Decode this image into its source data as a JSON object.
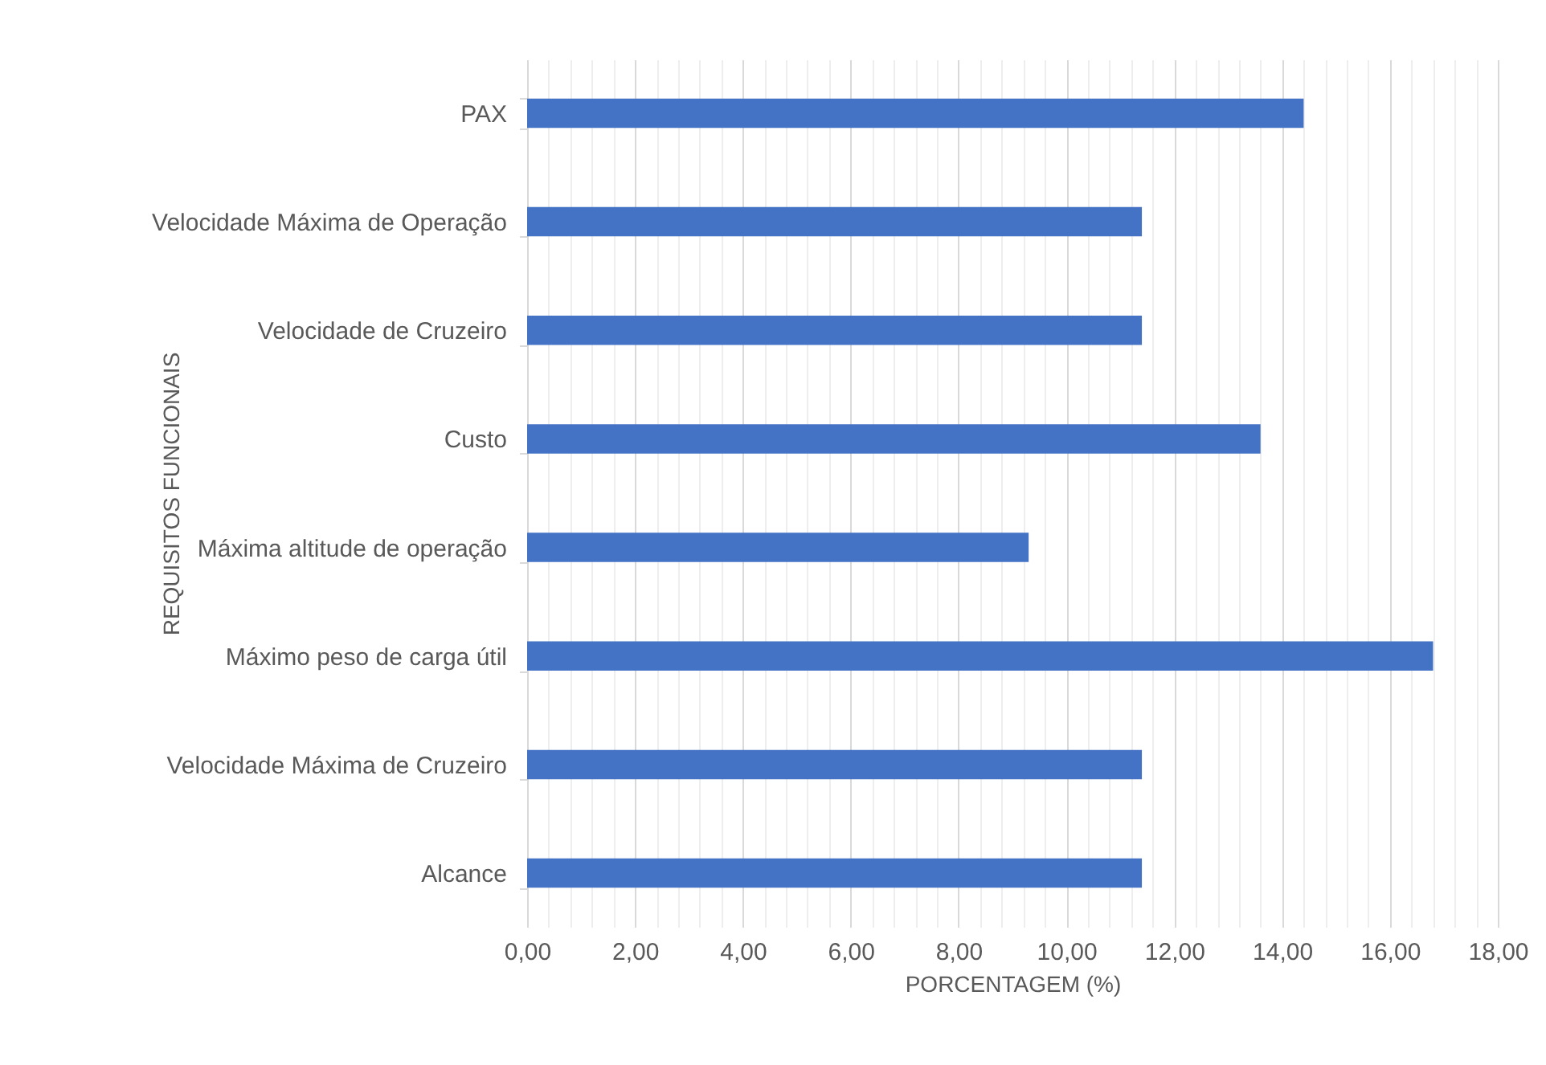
{
  "chart_data": {
    "type": "bar",
    "orientation": "horizontal",
    "xlabel": "PORCENTAGEM (%)",
    "ylabel": "REQUISITOS FUNCIONAIS",
    "categories": [
      "PAX",
      "Velocidade Máxima de Operação",
      "Velocidade de Cruzeiro",
      "Custo",
      "Máxima altitude de operação",
      "Máximo peso de carga útil",
      "Velocidade Máxima de Cruzeiro",
      "Alcance"
    ],
    "values": [
      14.4,
      11.4,
      11.4,
      13.6,
      9.3,
      16.8,
      11.4,
      11.4
    ],
    "color": "#4472c4",
    "xlim": [
      0,
      18
    ],
    "xticks": [
      {
        "value": 0,
        "label": "0,00"
      },
      {
        "value": 0.4,
        "label": null
      },
      {
        "value": 0.8,
        "label": null
      },
      {
        "value": 1.2,
        "label": null
      },
      {
        "value": 1.6,
        "label": null
      },
      {
        "value": 2,
        "label": "2,00"
      },
      {
        "value": 2.4,
        "label": null
      },
      {
        "value": 2.8,
        "label": null
      },
      {
        "value": 3.2,
        "label": null
      },
      {
        "value": 3.6,
        "label": null
      },
      {
        "value": 4,
        "label": "4,00"
      },
      {
        "value": 4.4,
        "label": null
      },
      {
        "value": 4.8,
        "label": null
      },
      {
        "value": 5.2,
        "label": null
      },
      {
        "value": 5.6,
        "label": null
      },
      {
        "value": 6,
        "label": "6,00"
      },
      {
        "value": 6.4,
        "label": null
      },
      {
        "value": 6.8,
        "label": null
      },
      {
        "value": 7.2,
        "label": null
      },
      {
        "value": 7.6,
        "label": null
      },
      {
        "value": 8,
        "label": "8,00"
      },
      {
        "value": 8.4,
        "label": null
      },
      {
        "value": 8.8,
        "label": null
      },
      {
        "value": 9.2,
        "label": null
      },
      {
        "value": 9.6,
        "label": null
      },
      {
        "value": 10,
        "label": "10,00"
      },
      {
        "value": 10.4,
        "label": null
      },
      {
        "value": 10.8,
        "label": null
      },
      {
        "value": 11.2,
        "label": null
      },
      {
        "value": 11.6,
        "label": null
      },
      {
        "value": 12,
        "label": "12,00"
      },
      {
        "value": 12.4,
        "label": null
      },
      {
        "value": 12.8,
        "label": null
      },
      {
        "value": 13.2,
        "label": null
      },
      {
        "value": 13.6,
        "label": null
      },
      {
        "value": 14,
        "label": "14,00"
      },
      {
        "value": 14.4,
        "label": null
      },
      {
        "value": 14.8,
        "label": null
      },
      {
        "value": 15.2,
        "label": null
      },
      {
        "value": 15.6,
        "label": null
      },
      {
        "value": 16,
        "label": "16,00"
      },
      {
        "value": 16.4,
        "label": null
      },
      {
        "value": 16.8,
        "label": null
      },
      {
        "value": 17.2,
        "label": null
      },
      {
        "value": 17.6,
        "label": null
      },
      {
        "value": 18,
        "label": "18,00"
      }
    ],
    "grid": "x"
  }
}
